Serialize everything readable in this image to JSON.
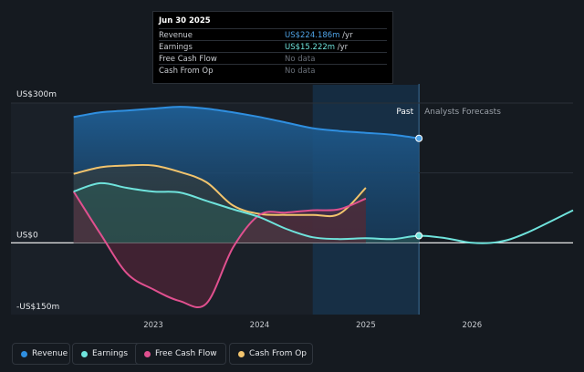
{
  "tooltip": {
    "date": "Jun 30 2025",
    "rows": [
      {
        "label": "Revenue",
        "value": "US$224.186m",
        "unit": "/yr",
        "color": "#4fa3e6"
      },
      {
        "label": "Earnings",
        "value": "US$15.222m",
        "unit": "/yr",
        "color": "#6fe3dc"
      },
      {
        "label": "Free Cash Flow",
        "value": "No data",
        "unit": "",
        "color": "#6a7079"
      },
      {
        "label": "Cash From Op",
        "value": "No data",
        "unit": "",
        "color": "#6a7079"
      }
    ]
  },
  "colors": {
    "revenue": "#2f8fe0",
    "earnings": "#6fe3dc",
    "free_cash_flow": "#e0508f",
    "cash_from_op": "#f2c46d",
    "background": "#151a20"
  },
  "chart_data": {
    "type": "line",
    "y_unit": "US$m",
    "ylim": [
      -150,
      300
    ],
    "y_ticks": [
      {
        "value": 300,
        "label": "US$300m"
      },
      {
        "value": 0,
        "label": "US$0"
      },
      {
        "value": -150,
        "label": "-US$150m"
      }
    ],
    "x_ticks": [
      {
        "value": 2023,
        "label": "2023"
      },
      {
        "value": 2024,
        "label": "2024"
      },
      {
        "value": 2025,
        "label": "2025"
      },
      {
        "value": 2026,
        "label": "2026"
      }
    ],
    "xlim": [
      2021.66,
      2026.95
    ],
    "past_label": "Past",
    "forecast_label": "Analysts Forecasts",
    "divider_x": 2025.5,
    "highlight_x": [
      2024.5,
      2025.5
    ],
    "series": [
      {
        "name": "Revenue",
        "key": "revenue",
        "x": [
          2022.25,
          2022.5,
          2022.75,
          2023.0,
          2023.25,
          2023.5,
          2023.75,
          2024.0,
          2024.25,
          2024.5,
          2024.75,
          2025.0,
          2025.25,
          2025.5
        ],
        "y": [
          270,
          280,
          284,
          288,
          292,
          288,
          280,
          270,
          258,
          246,
          240,
          236,
          232,
          224.186
        ]
      },
      {
        "name": "Earnings",
        "key": "earnings",
        "x": [
          2022.25,
          2022.5,
          2022.75,
          2023.0,
          2023.25,
          2023.5,
          2023.75,
          2024.0,
          2024.25,
          2024.5,
          2024.75,
          2025.0,
          2025.25,
          2025.5,
          2025.75,
          2026.0,
          2026.25,
          2026.5,
          2026.95
        ],
        "y": [
          110,
          128,
          118,
          110,
          108,
          90,
          72,
          55,
          30,
          12,
          8,
          10,
          8,
          15.222,
          10,
          0,
          2,
          20,
          70
        ]
      },
      {
        "name": "Free Cash Flow",
        "key": "free_cash_flow",
        "x": [
          2022.25,
          2022.5,
          2022.75,
          2023.0,
          2023.25,
          2023.5,
          2023.75,
          2024.0,
          2024.25,
          2024.5,
          2024.75,
          2025.0
        ],
        "y": [
          110,
          20,
          -65,
          -100,
          -125,
          -130,
          -10,
          60,
          65,
          70,
          72,
          95
        ]
      },
      {
        "name": "Cash From Op",
        "key": "cash_from_op",
        "x": [
          2022.25,
          2022.5,
          2022.75,
          2023.0,
          2023.25,
          2023.5,
          2023.75,
          2024.0,
          2024.25,
          2024.5,
          2024.75,
          2025.0
        ],
        "y": [
          148,
          162,
          166,
          166,
          152,
          130,
          80,
          62,
          60,
          60,
          62,
          118
        ]
      }
    ]
  },
  "legend": [
    {
      "label": "Revenue",
      "color": "#2f8fe0"
    },
    {
      "label": "Earnings",
      "color": "#6fe3dc"
    },
    {
      "label": "Free Cash Flow",
      "color": "#e0508f"
    },
    {
      "label": "Cash From Op",
      "color": "#f2c46d"
    }
  ]
}
